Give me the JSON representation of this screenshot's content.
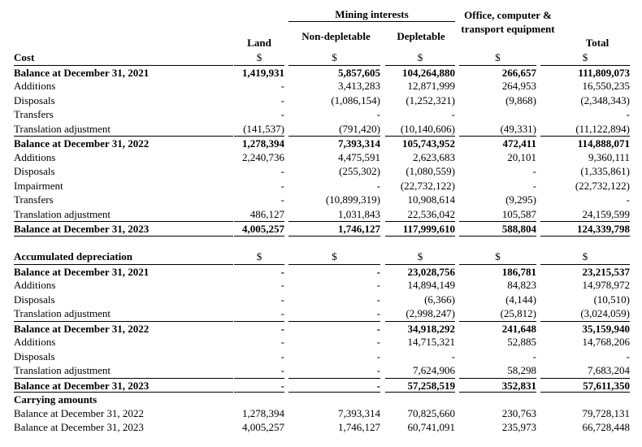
{
  "table": {
    "header": {
      "group": "Mining interests",
      "columns": [
        "Land",
        "Non-depletable",
        "Depletable",
        "Office, computer & transport equipment",
        "Total"
      ]
    },
    "rows": [
      [
        "Cost",
        "$",
        "$",
        "$",
        "$",
        "$"
      ],
      [
        "Balance at December 31, 2021",
        "1,419,931",
        "5,857,605",
        "104,264,880",
        "266,657",
        "111,809,073"
      ],
      [
        "Additions",
        "-",
        "3,413,283",
        "12,871,999",
        "264,953",
        "16,550,235"
      ],
      [
        "Disposals",
        "-",
        "(1,086,154)",
        "(1,252,321)",
        "(9,868)",
        "(2,348,343)"
      ],
      [
        "Transfers",
        "-",
        "-",
        "-",
        null,
        "-"
      ],
      [
        "Translation adjustment",
        "(141,537)",
        "(791,420)",
        "(10,140,606)",
        "(49,331)",
        "(11,122,894)"
      ],
      [
        "Balance at December 31, 2022",
        "1,278,394",
        "7,393,314",
        "105,743,952",
        "472,411",
        "114,888,071"
      ],
      [
        "Additions",
        "2,240,736",
        "4,475,591",
        "2,623,683",
        "20,101",
        "9,360,111"
      ],
      [
        "Disposals",
        "-",
        "(255,302)",
        "(1,080,559)",
        "-",
        "(1,335,861)"
      ],
      [
        "Impairment",
        "-",
        "-",
        "(22,732,122)",
        "-",
        "(22,732,122)"
      ],
      [
        "Transfers",
        "-",
        "(10,899,319)",
        "10,908,614",
        "(9,295)",
        "-"
      ],
      [
        "Translation adjustment",
        "486,127",
        "1,031,843",
        "22,536,042",
        "105,587",
        "24,159,599"
      ],
      [
        "Balance at December 31, 2023",
        "4,005,257",
        "1,746,127",
        "117,999,610",
        "588,804",
        "124,339,798"
      ],
      [
        "Accumulated depreciation",
        "$",
        "$",
        "$",
        "$",
        "$"
      ],
      [
        "Balance at December 31, 2021",
        "-",
        "-",
        "23,028,756",
        "186,781",
        "23,215,537"
      ],
      [
        "Additions",
        "-",
        "-",
        "14,894,149",
        "84,823",
        "14,978,972"
      ],
      [
        "Disposals",
        "-",
        "-",
        "(6,366)",
        "(4,144)",
        "(10,510)"
      ],
      [
        "Translation adjustment",
        "-",
        "-",
        "(2,998,247)",
        "(25,812)",
        "(3,024,059)"
      ],
      [
        "Balance at December 31, 2022",
        "-",
        "-",
        "34,918,292",
        "241,648",
        "35,159,940"
      ],
      [
        "Additions",
        "-",
        "-",
        "14,715,321",
        "52,885",
        "14,768,206"
      ],
      [
        "Disposals",
        "-",
        "-",
        "-",
        "-",
        "-"
      ],
      [
        "Translation adjustment",
        "-",
        "-",
        "7,624,906",
        "58,298",
        "7,683,204"
      ],
      [
        "Balance at December 31, 2023",
        "-",
        "-",
        "57,258,519",
        "352,831",
        "57,611,350"
      ],
      [
        "Carrying amounts",
        null,
        null,
        null,
        null,
        null
      ],
      [
        "Balance at December 31, 2022",
        "1,278,394",
        "7,393,314",
        "70,825,660",
        "230,763",
        "79,728,131"
      ],
      [
        "Balance at December 31, 2023",
        "4,005,257",
        "1,746,127",
        "60,741,091",
        "235,973",
        "66,728,448"
      ]
    ]
  }
}
